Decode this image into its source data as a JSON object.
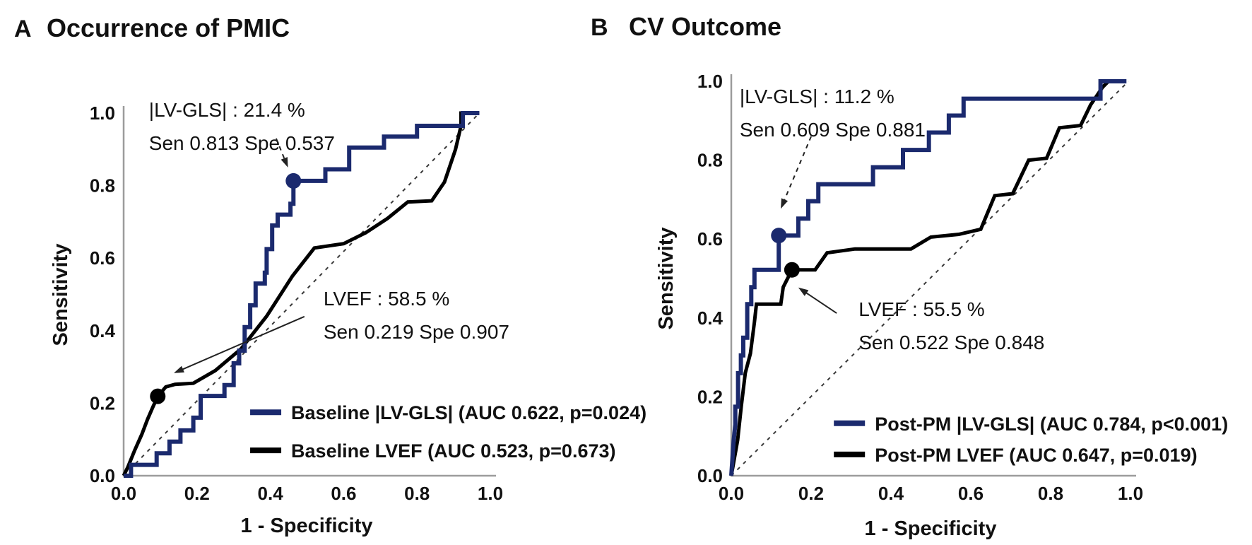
{
  "figure": {
    "background": "#ffffff",
    "colors": {
      "gls_blue": "#1b2a6e",
      "lvef_black": "#000000",
      "axis_gray": "#9c9c9c",
      "reference_dash": "#3a3a3a",
      "text": "#111111"
    }
  },
  "chart_data": [
    {
      "id": "panel-a",
      "type": "line",
      "panel_label": "A",
      "title": "Occurrence of PMIC",
      "xlabel": "1 - Specificity",
      "ylabel": "Sensitivity",
      "xlim": [
        0,
        1
      ],
      "ylim": [
        0,
        1
      ],
      "grid": false,
      "diagonal_reference": true,
      "xtick_labels": [
        "0.0",
        "0.2",
        "0.4",
        "0.6",
        "0.8",
        "1.0"
      ],
      "ytick_labels": [
        "0.0",
        "0.2",
        "0.4",
        "0.6",
        "0.8",
        "1.0"
      ],
      "series": [
        {
          "name": "Baseline |LV-GLS| (AUC 0.622, p=0.024)",
          "color": "#1b2a6e",
          "stroke_width": 6,
          "auc": 0.622,
          "p_value": "p=0.024",
          "points": [
            [
              0,
              0
            ],
            [
              0.02,
              0
            ],
            [
              0.02,
              0.03
            ],
            [
              0.09,
              0.03
            ],
            [
              0.09,
              0.062
            ],
            [
              0.125,
              0.062
            ],
            [
              0.125,
              0.094
            ],
            [
              0.155,
              0.094
            ],
            [
              0.155,
              0.125
            ],
            [
              0.19,
              0.125
            ],
            [
              0.19,
              0.16
            ],
            [
              0.21,
              0.16
            ],
            [
              0.21,
              0.22
            ],
            [
              0.275,
              0.22
            ],
            [
              0.275,
              0.25
            ],
            [
              0.3,
              0.25
            ],
            [
              0.3,
              0.31
            ],
            [
              0.315,
              0.31
            ],
            [
              0.315,
              0.345
            ],
            [
              0.33,
              0.345
            ],
            [
              0.33,
              0.41
            ],
            [
              0.345,
              0.41
            ],
            [
              0.345,
              0.47
            ],
            [
              0.36,
              0.47
            ],
            [
              0.36,
              0.53
            ],
            [
              0.385,
              0.53
            ],
            [
              0.385,
              0.56
            ],
            [
              0.39,
              0.56
            ],
            [
              0.39,
              0.625
            ],
            [
              0.405,
              0.625
            ],
            [
              0.405,
              0.69
            ],
            [
              0.42,
              0.69
            ],
            [
              0.42,
              0.72
            ],
            [
              0.455,
              0.72
            ],
            [
              0.455,
              0.75
            ],
            [
              0.463,
              0.75
            ],
            [
              0.463,
              0.813
            ],
            [
              0.55,
              0.813
            ],
            [
              0.55,
              0.845
            ],
            [
              0.615,
              0.845
            ],
            [
              0.615,
              0.905
            ],
            [
              0.71,
              0.905
            ],
            [
              0.71,
              0.935
            ],
            [
              0.8,
              0.935
            ],
            [
              0.8,
              0.965
            ],
            [
              0.925,
              0.965
            ],
            [
              0.925,
              1.0
            ],
            [
              0.97,
              1.0
            ]
          ]
        },
        {
          "name": "Baseline LVEF (AUC 0.523, p=0.673)",
          "color": "#000000",
          "stroke_width": 5,
          "auc": 0.523,
          "p_value": "p=0.673",
          "points": [
            [
              0,
              0
            ],
            [
              0.012,
              0.025
            ],
            [
              0.03,
              0.07
            ],
            [
              0.05,
              0.115
            ],
            [
              0.065,
              0.155
            ],
            [
              0.08,
              0.19
            ],
            [
              0.093,
              0.219
            ],
            [
              0.115,
              0.245
            ],
            [
              0.14,
              0.252
            ],
            [
              0.19,
              0.255
            ],
            [
              0.25,
              0.29
            ],
            [
              0.32,
              0.35
            ],
            [
              0.39,
              0.44
            ],
            [
              0.46,
              0.55
            ],
            [
              0.52,
              0.628
            ],
            [
              0.6,
              0.64
            ],
            [
              0.66,
              0.67
            ],
            [
              0.72,
              0.71
            ],
            [
              0.775,
              0.755
            ],
            [
              0.84,
              0.758
            ],
            [
              0.875,
              0.81
            ],
            [
              0.905,
              0.9
            ],
            [
              0.92,
              0.965
            ],
            [
              0.92,
              1.0
            ],
            [
              0.97,
              1.0
            ]
          ]
        }
      ],
      "markers": [
        {
          "x": 0.463,
          "y": 0.813,
          "color": "#1b2a6e"
        },
        {
          "x": 0.093,
          "y": 0.219,
          "color": "#000000"
        }
      ],
      "annotations": [
        {
          "lines": [
            "|LV-GLS| : 21.4 %",
            "Sen 0.813 Spe 0.537"
          ],
          "tx": 0.069,
          "ty": 0.99,
          "arrow": {
            "x1": 0.416,
            "y1": 0.93,
            "x2": 0.448,
            "y2": 0.85,
            "dashed": true
          }
        },
        {
          "lines": [
            "LVEF : 58.5 %",
            "Sen 0.219 Spe 0.907"
          ],
          "tx": 0.545,
          "ty": 0.47,
          "arrow": {
            "x1": 0.493,
            "y1": 0.439,
            "x2": 0.137,
            "y2": 0.283,
            "dashed": false
          }
        }
      ],
      "legend": {
        "tx": 0.345,
        "ty": 0.175,
        "row_gap": 0.105
      }
    },
    {
      "id": "panel-b",
      "type": "line",
      "panel_label": "B",
      "title": "CV Outcome",
      "xlabel": "1 - Specificity",
      "ylabel": "Sensitivity",
      "xlim": [
        0,
        1
      ],
      "ylim": [
        0,
        1
      ],
      "grid": false,
      "diagonal_reference": true,
      "xtick_labels": [
        "0.0",
        "0.2",
        "0.4",
        "0.6",
        "0.8",
        "1.0"
      ],
      "ytick_labels": [
        "0.0",
        "0.2",
        "0.4",
        "0.6",
        "0.8",
        "1.0"
      ],
      "series": [
        {
          "name": "Post-PM |LV-GLS| (AUC 0.784, p<0.001)",
          "color": "#1b2a6e",
          "stroke_width": 6,
          "auc": 0.784,
          "p_value": "p<0.001",
          "points": [
            [
              0,
              0
            ],
            [
              0.006,
              0.09
            ],
            [
              0.01,
              0.13
            ],
            [
              0.01,
              0.175
            ],
            [
              0.017,
              0.175
            ],
            [
              0.017,
              0.26
            ],
            [
              0.024,
              0.26
            ],
            [
              0.024,
              0.305
            ],
            [
              0.03,
              0.305
            ],
            [
              0.03,
              0.35
            ],
            [
              0.04,
              0.35
            ],
            [
              0.04,
              0.435
            ],
            [
              0.05,
              0.435
            ],
            [
              0.05,
              0.478
            ],
            [
              0.058,
              0.478
            ],
            [
              0.058,
              0.522
            ],
            [
              0.119,
              0.522
            ],
            [
              0.119,
              0.609
            ],
            [
              0.168,
              0.609
            ],
            [
              0.168,
              0.652
            ],
            [
              0.193,
              0.652
            ],
            [
              0.193,
              0.696
            ],
            [
              0.218,
              0.696
            ],
            [
              0.218,
              0.739
            ],
            [
              0.355,
              0.739
            ],
            [
              0.355,
              0.782
            ],
            [
              0.43,
              0.782
            ],
            [
              0.43,
              0.826
            ],
            [
              0.495,
              0.826
            ],
            [
              0.495,
              0.87
            ],
            [
              0.545,
              0.87
            ],
            [
              0.545,
              0.913
            ],
            [
              0.582,
              0.913
            ],
            [
              0.582,
              0.956
            ],
            [
              0.925,
              0.956
            ],
            [
              0.925,
              1.0
            ],
            [
              0.99,
              1.0
            ]
          ]
        },
        {
          "name": "Post-PM LVEF (AUC 0.647, p=0.019)",
          "color": "#000000",
          "stroke_width": 5,
          "auc": 0.647,
          "p_value": "p=0.019",
          "points": [
            [
              0,
              0
            ],
            [
              0.008,
              0.045
            ],
            [
              0.016,
              0.09
            ],
            [
              0.025,
              0.175
            ],
            [
              0.035,
              0.26
            ],
            [
              0.048,
              0.31
            ],
            [
              0.058,
              0.39
            ],
            [
              0.063,
              0.435
            ],
            [
              0.124,
              0.435
            ],
            [
              0.13,
              0.478
            ],
            [
              0.152,
              0.522
            ],
            [
              0.21,
              0.522
            ],
            [
              0.24,
              0.565
            ],
            [
              0.31,
              0.575
            ],
            [
              0.45,
              0.575
            ],
            [
              0.5,
              0.605
            ],
            [
              0.57,
              0.612
            ],
            [
              0.625,
              0.625
            ],
            [
              0.66,
              0.71
            ],
            [
              0.705,
              0.715
            ],
            [
              0.745,
              0.8
            ],
            [
              0.79,
              0.805
            ],
            [
              0.822,
              0.882
            ],
            [
              0.875,
              0.888
            ],
            [
              0.9,
              0.94
            ],
            [
              0.93,
              0.985
            ],
            [
              0.945,
              1.0
            ]
          ]
        }
      ],
      "markers": [
        {
          "x": 0.119,
          "y": 0.609,
          "color": "#1b2a6e"
        },
        {
          "x": 0.152,
          "y": 0.522,
          "color": "#000000"
        }
      ],
      "annotations": [
        {
          "lines": [
            "|LV-GLS| : 11.2 %",
            "Sen 0.609 Spe 0.881"
          ],
          "tx": 0.021,
          "ty": 0.944,
          "arrow": {
            "x1": 0.2,
            "y1": 0.86,
            "x2": 0.124,
            "y2": 0.677,
            "dashed": true
          }
        },
        {
          "lines": [
            "LVEF : 55.5 %",
            "Sen 0.522 Spe 0.848"
          ],
          "tx": 0.319,
          "ty": 0.405,
          "arrow": {
            "x1": 0.264,
            "y1": 0.412,
            "x2": 0.168,
            "y2": 0.477,
            "dashed": false
          }
        }
      ],
      "legend": {
        "tx": 0.257,
        "ty": 0.133,
        "row_gap": 0.079
      }
    }
  ]
}
